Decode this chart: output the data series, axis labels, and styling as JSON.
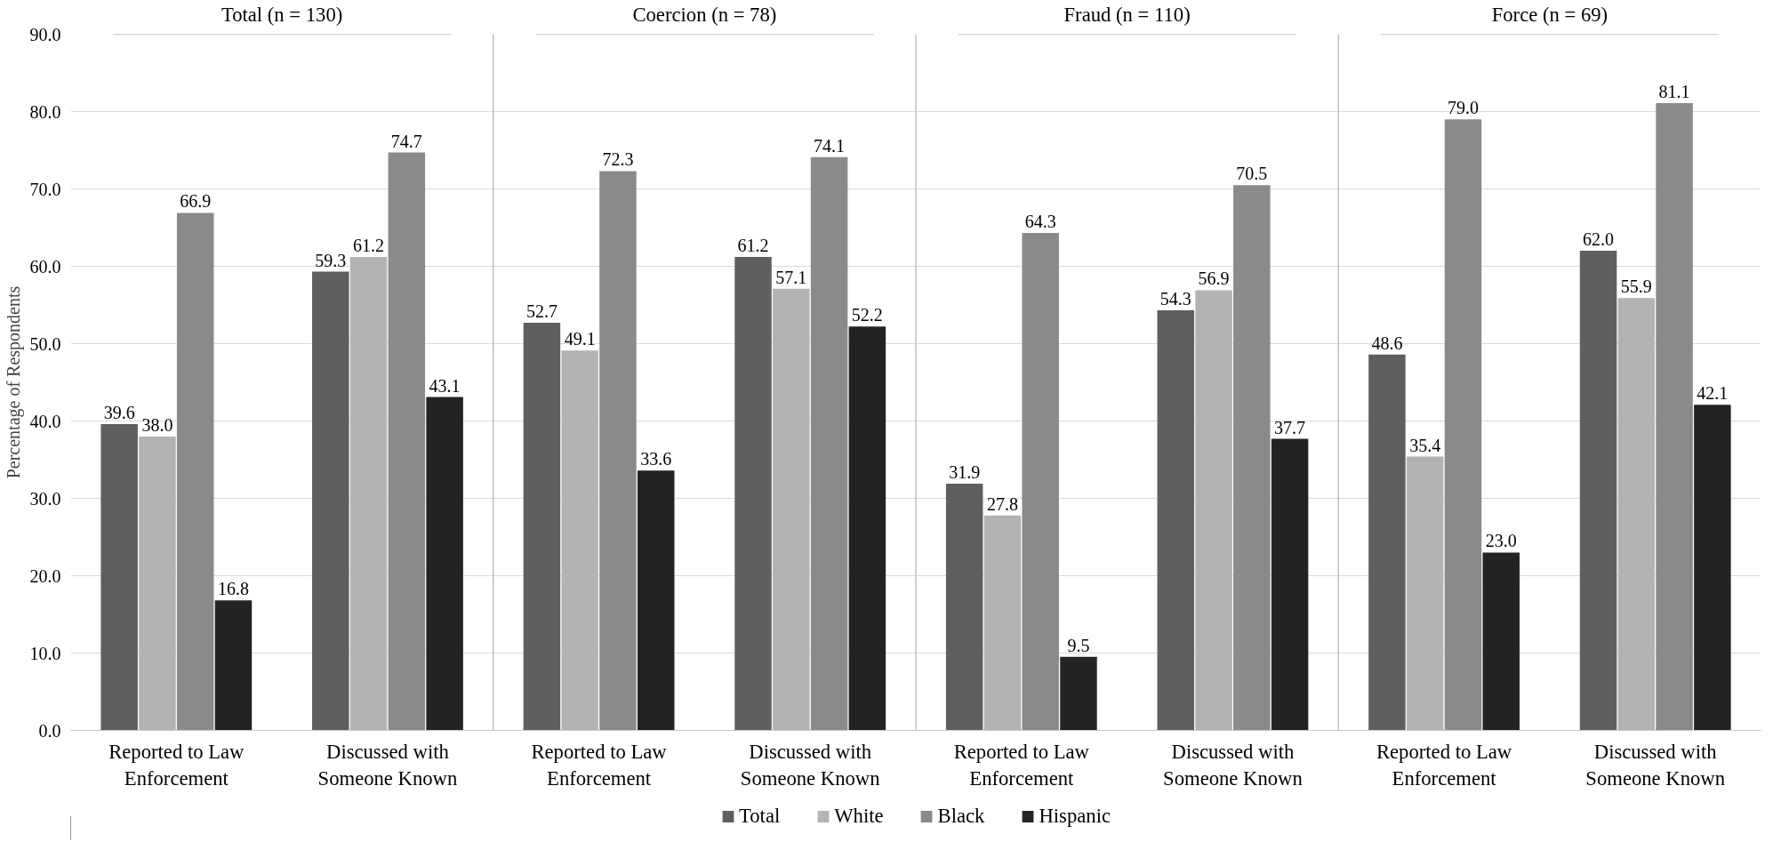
{
  "chart_data": {
    "type": "bar",
    "annotations": [
      "Total (n = 130)",
      "Coercion (n = 78)",
      "Fraud (n = 110)",
      "Force (n = 69)"
    ],
    "ylabel": "Percentage of Respondents",
    "categories": [
      "Reported to Law Enforcement",
      "Discussed with Someone Known",
      "Reported to Law Enforcement",
      "Discussed with Someone Known",
      "Reported to Law Enforcement",
      "Discussed with Someone Known",
      "Reported to Law Enforcement",
      "Discussed with Someone Known"
    ],
    "series": [
      {
        "name": "Total",
        "color": "#5f5f5f",
        "values": [
          39.6,
          59.3,
          52.7,
          61.2,
          31.9,
          54.3,
          48.6,
          62.0
        ],
        "value_labels": [
          "39.6",
          "59.3",
          "52.7",
          "61.2",
          "31.9",
          "54.3",
          "48.6",
          "62.0"
        ]
      },
      {
        "name": "White",
        "color": "#b3b3b3",
        "values": [
          38.0,
          61.2,
          49.1,
          57.1,
          27.8,
          56.9,
          35.4,
          55.9
        ],
        "value_labels": [
          "38.0",
          "61.2",
          "49.1",
          "57.1",
          "27.8",
          "56.9",
          "35.4",
          "55.9"
        ]
      },
      {
        "name": "Black",
        "color": "#8a8a8a",
        "values": [
          66.9,
          74.7,
          72.3,
          74.1,
          64.3,
          70.5,
          79.0,
          81.1
        ],
        "value_labels": [
          "66.9",
          "74.7",
          "72.3",
          "74.1",
          "64.3",
          "70.5",
          "79.0",
          "81.1"
        ]
      },
      {
        "name": "Hispanic",
        "color": "#232323",
        "values": [
          16.8,
          43.1,
          33.6,
          52.2,
          9.5,
          37.7,
          23.0,
          42.1
        ],
        "value_labels": [
          "16.8",
          "43.1",
          "33.6",
          "52.2",
          "9.5",
          "37.7",
          "23.0",
          "42.1"
        ]
      }
    ],
    "ylim": [
      0,
      90
    ],
    "yticks": [
      {
        "value": 0,
        "label": "0.0"
      },
      {
        "value": 10,
        "label": "10.0"
      },
      {
        "value": 20,
        "label": "20.0"
      },
      {
        "value": 30,
        "label": "30.0"
      },
      {
        "value": 40,
        "label": "40.0"
      },
      {
        "value": 50,
        "label": "50.0"
      },
      {
        "value": 60,
        "label": "60.0"
      },
      {
        "value": 70,
        "label": "70.0"
      },
      {
        "value": 80,
        "label": "80.0"
      },
      {
        "value": 90,
        "label": "90.0"
      }
    ],
    "grid": "y",
    "legend": "bottom"
  }
}
